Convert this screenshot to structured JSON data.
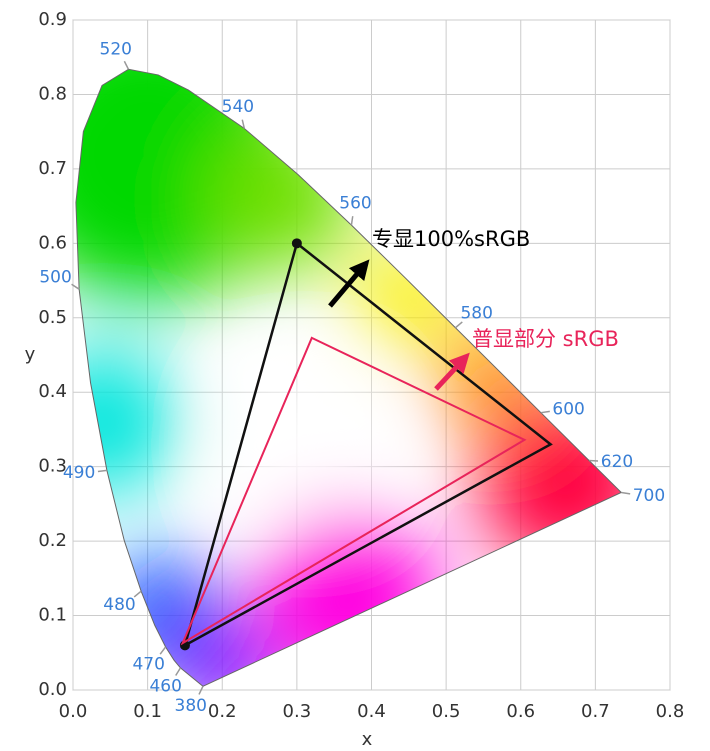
{
  "chart_data": {
    "type": "cie",
    "x_label": "x",
    "y_label": "y",
    "xlim": [
      0,
      0.8
    ],
    "ylim": [
      0,
      0.9
    ],
    "xticks": [
      {
        "value": 0,
        "label": "0.0"
      },
      0.1,
      0.2,
      0.3,
      0.4,
      0.5,
      0.6,
      0.7,
      0.8
    ],
    "yticks": [
      {
        "value": 0,
        "label": "0.0"
      },
      0.1,
      0.2,
      0.3,
      0.4,
      0.5,
      0.6,
      0.7,
      0.8,
      0.9
    ],
    "grid": true,
    "locus": {
      "x": [
        0.1741,
        0.144,
        0.1355,
        0.1241,
        0.1096,
        0.0913,
        0.0687,
        0.0454,
        0.0235,
        0.0082,
        0.0039,
        0.0139,
        0.0389,
        0.0743,
        0.1142,
        0.1547,
        0.2296,
        0.3016,
        0.3731,
        0.4441,
        0.5125,
        0.5752,
        0.627,
        0.6915,
        0.7347
      ],
      "y": [
        0.005,
        0.0297,
        0.0399,
        0.0578,
        0.0868,
        0.1327,
        0.2007,
        0.295,
        0.4127,
        0.5384,
        0.6548,
        0.7502,
        0.812,
        0.8338,
        0.8262,
        0.8059,
        0.7543,
        0.6923,
        0.6245,
        0.5547,
        0.4866,
        0.4242,
        0.3725,
        0.3083,
        0.2653
      ]
    },
    "wavelengths": [
      {
        "nm": 380,
        "x": 0.1741,
        "y": 0.005
      },
      {
        "nm": 460,
        "x": 0.144,
        "y": 0.0297
      },
      {
        "nm": 470,
        "x": 0.1241,
        "y": 0.0578
      },
      {
        "nm": 480,
        "x": 0.0913,
        "y": 0.1327
      },
      {
        "nm": 490,
        "x": 0.0454,
        "y": 0.295
      },
      {
        "nm": 500,
        "x": 0.0082,
        "y": 0.5384
      },
      {
        "nm": 520,
        "x": 0.0743,
        "y": 0.8338
      },
      {
        "nm": 540,
        "x": 0.2296,
        "y": 0.7543
      },
      {
        "nm": 560,
        "x": 0.3731,
        "y": 0.6245
      },
      {
        "nm": 580,
        "x": 0.5125,
        "y": 0.4866
      },
      {
        "nm": 600,
        "x": 0.627,
        "y": 0.3725
      },
      {
        "nm": 620,
        "x": 0.6915,
        "y": 0.3083
      },
      {
        "nm": 700,
        "x": 0.7347,
        "y": 0.2653
      }
    ],
    "wavelength_color": "#3a7fd5",
    "gamuts": [
      {
        "color": "#111111",
        "x": [
          0.64,
          0.3,
          0.15
        ],
        "y": [
          0.33,
          0.6,
          0.06
        ]
      },
      {
        "color": "#e8245a",
        "x": [
          0.32,
          0.605,
          0.147
        ],
        "y": [
          0.473,
          0.336,
          0.063
        ]
      }
    ],
    "annotations": [
      {
        "text": "专显100%sRGB",
        "color": "#000000"
      },
      {
        "text": "普显部分 sRGB",
        "color": "#e8245a"
      }
    ]
  }
}
